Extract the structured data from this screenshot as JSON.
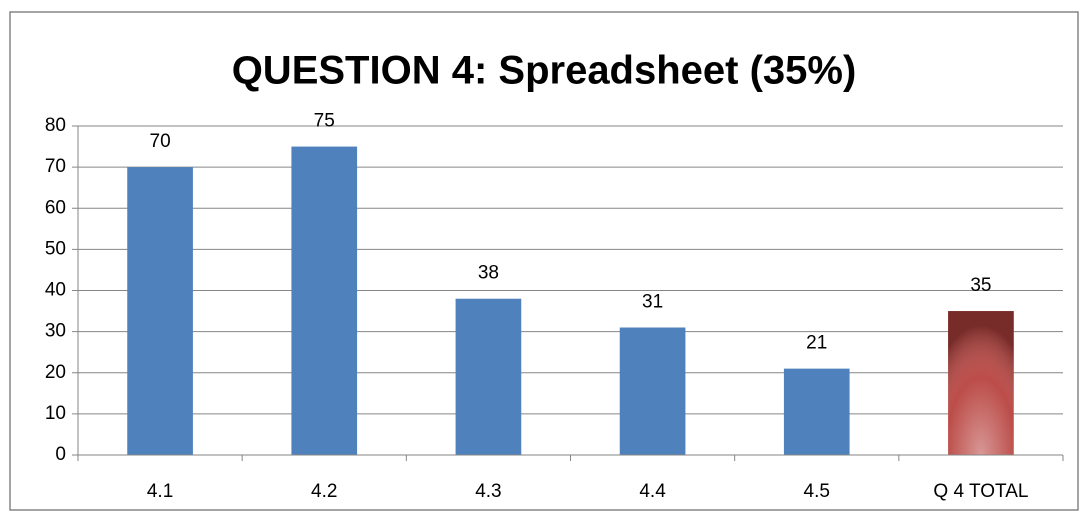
{
  "chart_data": {
    "type": "bar",
    "title": "QUESTION 4:  Spreadsheet (35%)",
    "categories": [
      "4.1",
      "4.2",
      "4.3",
      "4.4",
      "4.5",
      "Q 4 TOTAL"
    ],
    "values": [
      70,
      75,
      38,
      31,
      21,
      35
    ],
    "colors": [
      "#4f81bd",
      "#4f81bd",
      "#4f81bd",
      "#4f81bd",
      "#4f81bd",
      "#b8433f"
    ],
    "ylim": [
      0,
      80
    ],
    "yticks": [
      0,
      10,
      20,
      30,
      40,
      50,
      60,
      70,
      80
    ],
    "grid": true
  }
}
